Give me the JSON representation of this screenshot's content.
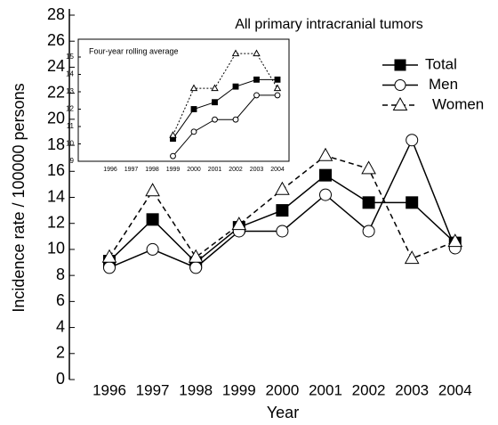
{
  "chart_data": [
    {
      "type": "line",
      "title": "All primary intracranial tumors",
      "x_label": "Year",
      "y_label": "Incidence rate / 100000 persons",
      "categories": [
        "1996",
        "1997",
        "1998",
        "1999",
        "2000",
        "2001",
        "2002",
        "2003",
        "2004"
      ],
      "ylim": [
        0,
        28
      ],
      "yticks": [
        0,
        2,
        4,
        6,
        8,
        10,
        12,
        14,
        16,
        18,
        20,
        22,
        24,
        26,
        28
      ],
      "legend": "upper right",
      "series": [
        {
          "name": "Total",
          "color": "#000000",
          "marker": "square",
          "filled": true,
          "dashed": false,
          "values": [
            9.1,
            12.3,
            9.0,
            11.7,
            13.0,
            15.7,
            13.6,
            13.6,
            10.5
          ]
        },
        {
          "name": "Men",
          "color": "#000000",
          "marker": "circle",
          "filled": false,
          "dashed": false,
          "values": [
            8.6,
            10.0,
            8.6,
            11.4,
            11.4,
            14.2,
            11.4,
            18.4,
            10.1
          ]
        },
        {
          "name": "Women",
          "color": "#000000",
          "marker": "triangle",
          "filled": false,
          "dashed": true,
          "values": [
            9.4,
            14.5,
            9.4,
            11.9,
            14.6,
            17.2,
            16.2,
            9.3,
            10.6
          ]
        }
      ]
    },
    {
      "type": "line",
      "title": "Four-year rolling average",
      "categories": [
        "1996",
        "1997",
        "1998",
        "1999",
        "2000",
        "2001",
        "2002",
        "2003",
        "2004"
      ],
      "ylim": [
        9,
        16
      ],
      "yticks": [
        9,
        10,
        11,
        12,
        13,
        14,
        15
      ],
      "series": [
        {
          "name": "Total",
          "color": "#000000",
          "marker": "square",
          "filled": true,
          "dashed": false,
          "values": [
            null,
            null,
            null,
            10.3,
            12.0,
            12.4,
            13.3,
            13.7,
            13.7
          ]
        },
        {
          "name": "Men",
          "color": "#000000",
          "marker": "circle",
          "filled": false,
          "dashed": false,
          "values": [
            null,
            null,
            null,
            9.3,
            10.7,
            11.4,
            11.4,
            12.8,
            12.8
          ]
        },
        {
          "name": "Women",
          "color": "#000000",
          "marker": "triangle",
          "filled": false,
          "dashed": true,
          "values": [
            null,
            null,
            null,
            10.5,
            13.2,
            13.2,
            15.2,
            15.2,
            13.2
          ]
        }
      ]
    }
  ]
}
